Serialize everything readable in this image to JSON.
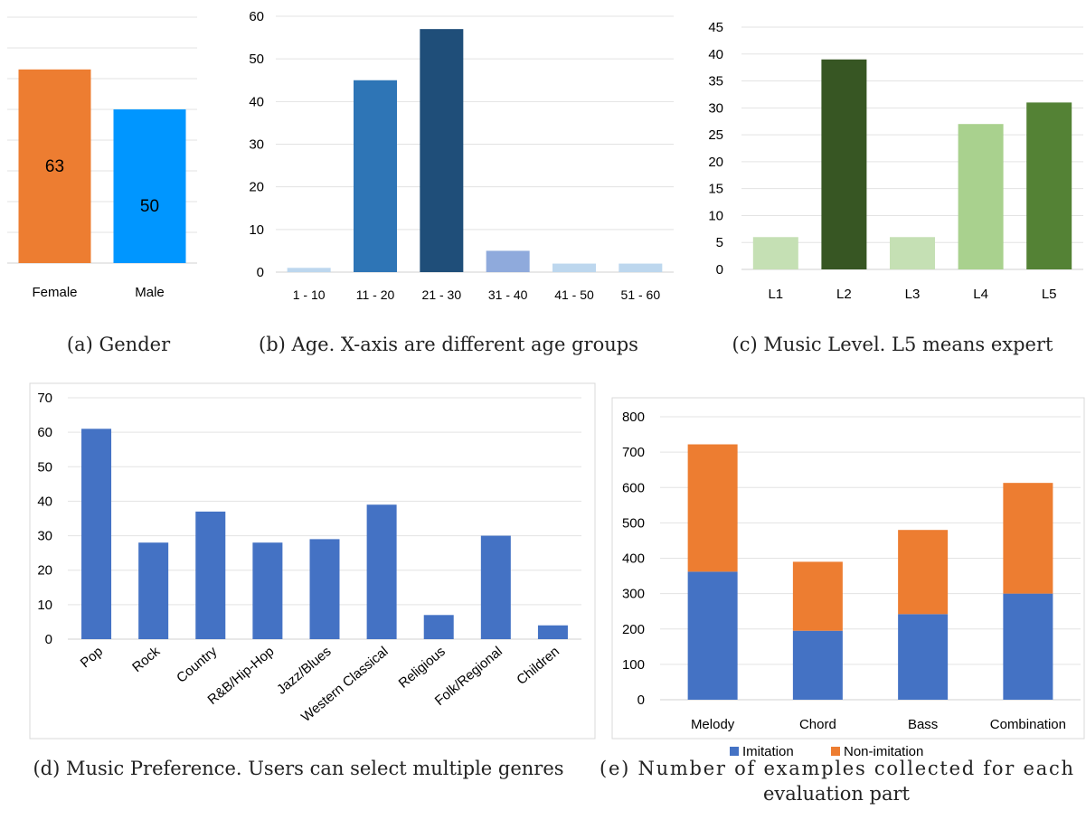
{
  "chart_data": [
    {
      "id": "gender",
      "type": "bar",
      "caption": "(a) Gender",
      "categories": [
        "Female",
        "Male"
      ],
      "values": [
        63,
        50
      ],
      "colors": [
        "#ED7D31",
        "#0096FF"
      ],
      "data_labels": true,
      "ylim": [
        0,
        80
      ],
      "grid": true
    },
    {
      "id": "age",
      "type": "bar",
      "caption": "(b) Age. X-axis are different age groups",
      "categories": [
        "1 - 10",
        "11 - 20",
        "21 - 30",
        "31 - 40",
        "41 - 50",
        "51 - 60"
      ],
      "values": [
        1,
        45,
        57,
        5,
        2,
        2
      ],
      "colors": [
        "#BDD7EE",
        "#2E75B6",
        "#1F4E79",
        "#8FAADC",
        "#BDD7EE",
        "#BDD7EE"
      ],
      "yticks": [
        0,
        10,
        20,
        30,
        40,
        50,
        60
      ],
      "ylim": [
        0,
        60
      ],
      "grid": true
    },
    {
      "id": "level",
      "type": "bar",
      "caption": "(c) Music Level. L5 means expert",
      "categories": [
        "L1",
        "L2",
        "L3",
        "L4",
        "L5"
      ],
      "values": [
        6,
        39,
        6,
        27,
        31
      ],
      "colors": [
        "#C5E0B4",
        "#375623",
        "#C5E0B4",
        "#A9D18E",
        "#548235"
      ],
      "yticks": [
        0,
        5,
        10,
        15,
        20,
        25,
        30,
        35,
        40,
        45
      ],
      "ylim": [
        0,
        45
      ],
      "grid": true
    },
    {
      "id": "preference",
      "type": "bar",
      "caption": "(d) Music Preference. Users can select multiple genres",
      "categories": [
        "Pop",
        "Rock",
        "Country",
        "R&B/Hip-Hop",
        "Jazz/Blues",
        "Western Classical",
        "Religious",
        "Folk/Regional",
        "Children"
      ],
      "values": [
        61,
        28,
        37,
        28,
        29,
        39,
        7,
        30,
        4
      ],
      "color": "#4472C4",
      "yticks": [
        0,
        10,
        20,
        30,
        40,
        50,
        60,
        70
      ],
      "ylim": [
        0,
        70
      ],
      "grid": true
    },
    {
      "id": "examples",
      "type": "bar",
      "stacked": true,
      "caption_lines": [
        "(e) Number of examples collected for each",
        "evaluation part"
      ],
      "categories": [
        "Melody",
        "Chord",
        "Bass",
        "Combination"
      ],
      "series": [
        {
          "name": "Imitation",
          "values": [
            362,
            195,
            242,
            300
          ],
          "color": "#4472C4"
        },
        {
          "name": "Non-imitation",
          "values": [
            360,
            195,
            238,
            313
          ],
          "color": "#ED7D31"
        }
      ],
      "yticks": [
        0,
        100,
        200,
        300,
        400,
        500,
        600,
        700,
        800
      ],
      "ylim": [
        0,
        800
      ],
      "grid": true,
      "legend": "bottom"
    }
  ]
}
